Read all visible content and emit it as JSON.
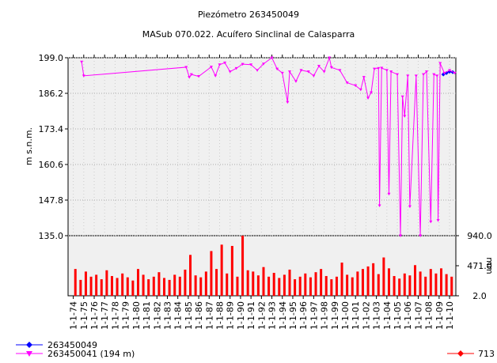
{
  "chart_data": [
    {
      "type": "line",
      "title": "Piezómetro 263450049",
      "subtitle": "MASub 070.022. Acuífero Sinclinal de Calasparra",
      "ylabel": "m s.n.m.",
      "grid": true,
      "xlim": [
        1973.5,
        2010.6
      ],
      "ylim": [
        135,
        199
      ],
      "yticks": [
        {
          "value": 135,
          "label": "135.0"
        },
        {
          "value": 147.8,
          "label": "147.8"
        },
        {
          "value": 160.6,
          "label": "160.6"
        },
        {
          "value": 173.4,
          "label": "173.4"
        },
        {
          "value": 186.2,
          "label": "186.2"
        },
        {
          "value": 199,
          "label": "199.0"
        }
      ],
      "series": [
        {
          "name": "263450049",
          "color": "#0000ff",
          "marker": "diamond",
          "x": [
            2009.4,
            2009.7,
            2010.0,
            2010.3
          ],
          "values": [
            193.0,
            193.5,
            194.0,
            193.8
          ]
        },
        {
          "name": "263450041 (194 m)",
          "color": "#ff00ff",
          "marker": "triangle",
          "x": [
            1974.8,
            1975.0,
            1984.8,
            1985.1,
            1985.3,
            1986.0,
            1987.2,
            1987.6,
            1988.0,
            1988.5,
            1989.0,
            1989.6,
            1990.2,
            1991.0,
            1991.6,
            1992.2,
            1993.0,
            1993.5,
            1994.0,
            1994.5,
            1994.7,
            1995.3,
            1995.8,
            1996.5,
            1997.0,
            1997.5,
            1998.0,
            1998.5,
            1998.7,
            1999.5,
            2000.2,
            2001.0,
            2001.5,
            2001.8,
            2002.2,
            2002.5,
            2002.8,
            2003.2,
            2003.3,
            2003.5,
            2004.0,
            2004.2,
            2004.4,
            2005.0,
            2005.3,
            2005.5,
            2005.7,
            2006.0,
            2006.2,
            2006.8,
            2007.2,
            2007.5,
            2007.8,
            2008.2,
            2008.5,
            2008.8,
            2008.9,
            2009.1,
            2009.5,
            2010.0,
            2010.5
          ],
          "values": [
            197.5,
            192.5,
            195.6,
            192.0,
            193.0,
            192.3,
            195.7,
            192.5,
            196.5,
            197.2,
            194.0,
            195.2,
            196.7,
            196.5,
            194.5,
            196.8,
            199.0,
            195.0,
            193.5,
            183.0,
            194.0,
            190.5,
            194.5,
            194.0,
            192.5,
            196.0,
            194.0,
            199.0,
            195.5,
            194.5,
            190.0,
            189.0,
            187.5,
            192.0,
            184.5,
            186.5,
            195.0,
            195.2,
            145.8,
            195.3,
            194.5,
            150.0,
            194.0,
            193.0,
            135.0,
            185.0,
            178.0,
            192.5,
            145.5,
            192.5,
            135.0,
            193.0,
            194.0,
            140.0,
            193.0,
            192.5,
            140.5,
            197.0,
            193.5,
            194.5,
            193.5
          ]
        }
      ]
    },
    {
      "type": "bar",
      "ylabel": "mm",
      "xlim": [
        1973.5,
        2010.6
      ],
      "ylim": [
        2,
        940
      ],
      "yticks": [
        {
          "value": 2,
          "label": "2.0"
        },
        {
          "value": 471,
          "label": "471.0"
        },
        {
          "value": 940,
          "label": "940.0"
        }
      ],
      "xticks": [
        {
          "value": 1974,
          "label": "1-1-74"
        },
        {
          "value": 1975,
          "label": "1-1-75"
        },
        {
          "value": 1976,
          "label": "1-1-76"
        },
        {
          "value": 1977,
          "label": "1-1-77"
        },
        {
          "value": 1978,
          "label": "1-1-78"
        },
        {
          "value": 1979,
          "label": "1-1-79"
        },
        {
          "value": 1980,
          "label": "1-1-80"
        },
        {
          "value": 1981,
          "label": "1-1-81"
        },
        {
          "value": 1982,
          "label": "1-1-82"
        },
        {
          "value": 1983,
          "label": "1-1-83"
        },
        {
          "value": 1984,
          "label": "1-1-84"
        },
        {
          "value": 1985,
          "label": "1-1-85"
        },
        {
          "value": 1986,
          "label": "1-1-86"
        },
        {
          "value": 1987,
          "label": "1-1-87"
        },
        {
          "value": 1988,
          "label": "1-1-88"
        },
        {
          "value": 1989,
          "label": "1-1-89"
        },
        {
          "value": 1990,
          "label": "1-1-90"
        },
        {
          "value": 1991,
          "label": "1-1-91"
        },
        {
          "value": 1992,
          "label": "1-1-92"
        },
        {
          "value": 1993,
          "label": "1-1-93"
        },
        {
          "value": 1994,
          "label": "1-1-94"
        },
        {
          "value": 1995,
          "label": "1-1-95"
        },
        {
          "value": 1996,
          "label": "1-1-96"
        },
        {
          "value": 1997,
          "label": "1-1-97"
        },
        {
          "value": 1998,
          "label": "1-1-98"
        },
        {
          "value": 1999,
          "label": "1-1-99"
        },
        {
          "value": 2000,
          "label": "1-1-00"
        },
        {
          "value": 2001,
          "label": "1-1-01"
        },
        {
          "value": 2002,
          "label": "1-1-02"
        },
        {
          "value": 2003,
          "label": "1-1-03"
        },
        {
          "value": 2004,
          "label": "1-1-04"
        },
        {
          "value": 2005,
          "label": "1-1-05"
        },
        {
          "value": 2006,
          "label": "1-1-06"
        },
        {
          "value": 2007,
          "label": "1-1-07"
        },
        {
          "value": 2008,
          "label": "1-1-08"
        },
        {
          "value": 2009,
          "label": "1-1-09"
        },
        {
          "value": 2010,
          "label": "1-1-10"
        }
      ],
      "series": [
        {
          "name": "713",
          "color": "#ff0000",
          "x": [
            1974.2,
            1974.7,
            1975.2,
            1975.7,
            1976.2,
            1976.7,
            1977.2,
            1977.7,
            1978.2,
            1978.7,
            1979.2,
            1979.7,
            1980.2,
            1980.7,
            1981.2,
            1981.7,
            1982.2,
            1982.7,
            1983.2,
            1983.7,
            1984.2,
            1984.7,
            1985.2,
            1985.7,
            1986.2,
            1986.7,
            1987.2,
            1987.7,
            1988.2,
            1988.7,
            1989.2,
            1989.7,
            1990.2,
            1990.7,
            1991.2,
            1991.7,
            1992.2,
            1992.7,
            1993.2,
            1993.7,
            1994.2,
            1994.7,
            1995.2,
            1995.7,
            1996.2,
            1996.7,
            1997.2,
            1997.7,
            1998.2,
            1998.7,
            1999.2,
            1999.7,
            2000.2,
            2000.7,
            2001.2,
            2001.7,
            2002.2,
            2002.7,
            2003.2,
            2003.7,
            2004.2,
            2004.7,
            2005.2,
            2005.7,
            2006.2,
            2006.7,
            2007.2,
            2007.7,
            2008.2,
            2008.7,
            2009.2,
            2009.7,
            2010.2
          ],
          "values": [
            420,
            250,
            380,
            300,
            330,
            260,
            400,
            310,
            280,
            350,
            290,
            240,
            420,
            330,
            260,
            300,
            370,
            280,
            250,
            330,
            300,
            410,
            640,
            320,
            290,
            380,
            700,
            420,
            800,
            350,
            780,
            300,
            940,
            400,
            380,
            320,
            450,
            300,
            360,
            280,
            330,
            410,
            260,
            300,
            350,
            290,
            370,
            420,
            310,
            260,
            300,
            520,
            330,
            290,
            380,
            420,
            460,
            510,
            340,
            600,
            430,
            310,
            270,
            350,
            320,
            480,
            380,
            300,
            420,
            350,
            430,
            340,
            300
          ]
        }
      ]
    }
  ]
}
